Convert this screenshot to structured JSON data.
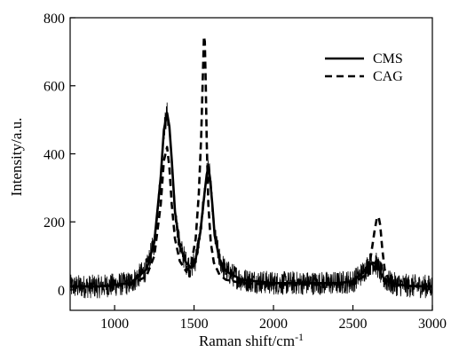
{
  "chart_data": {
    "type": "line",
    "xlabel_main": "Raman shift/cm",
    "xlabel_sup": "-1",
    "ylabel": "Intensity/a.u.",
    "xlim": [
      720,
      3000
    ],
    "ylim": [
      -60,
      800
    ],
    "xticks": [
      1000,
      1500,
      2000,
      2500,
      3000
    ],
    "yticks": [
      0,
      200,
      400,
      600,
      800
    ],
    "grid": false,
    "legend_position": "top-right",
    "series": [
      {
        "name": "CMS",
        "style": "solid",
        "color": "#000000",
        "x": [
          720,
          900,
          1100,
          1200,
          1250,
          1290,
          1310,
          1330,
          1345,
          1360,
          1380,
          1410,
          1450,
          1480,
          1510,
          1540,
          1565,
          1580,
          1590,
          1600,
          1615,
          1630,
          1660,
          1700,
          1800,
          2000,
          2200,
          2400,
          2500,
          2560,
          2600,
          2630,
          2650,
          2665,
          2680,
          2700,
          2750,
          2850,
          3000
        ],
        "y": [
          10,
          10,
          20,
          60,
          140,
          330,
          470,
          520,
          480,
          380,
          230,
          130,
          80,
          65,
          90,
          170,
          280,
          340,
          360,
          330,
          250,
          160,
          90,
          55,
          30,
          20,
          20,
          20,
          25,
          50,
          75,
          80,
          75,
          60,
          45,
          30,
          18,
          12,
          10
        ]
      },
      {
        "name": "CAG",
        "style": "dashed",
        "color": "#000000",
        "x": [
          720,
          900,
          1100,
          1200,
          1250,
          1290,
          1310,
          1330,
          1345,
          1360,
          1380,
          1410,
          1450,
          1480,
          1510,
          1530,
          1545,
          1555,
          1562,
          1568,
          1574,
          1580,
          1590,
          1605,
          1625,
          1660,
          1700,
          1800,
          2000,
          2200,
          2400,
          2500,
          2570,
          2610,
          2635,
          2650,
          2662,
          2672,
          2685,
          2700,
          2730,
          2800,
          3000
        ],
        "y": [
          10,
          10,
          15,
          40,
          100,
          250,
          380,
          420,
          360,
          250,
          150,
          85,
          55,
          70,
          150,
          280,
          450,
          620,
          745,
          730,
          600,
          430,
          250,
          140,
          80,
          45,
          30,
          20,
          15,
          15,
          15,
          20,
          40,
          90,
          170,
          210,
          215,
          190,
          120,
          60,
          25,
          12,
          10
        ]
      }
    ]
  }
}
